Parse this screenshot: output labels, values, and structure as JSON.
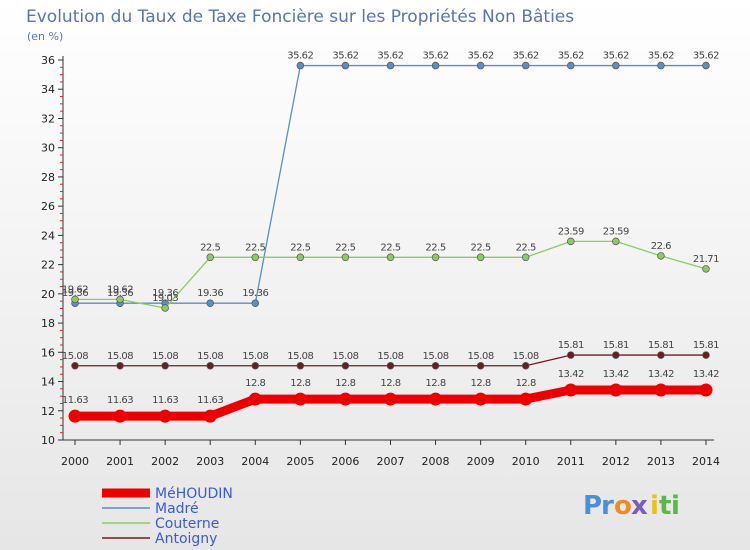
{
  "chart_data": {
    "type": "line",
    "title": "Evolution du Taux de Taxe Foncière sur les Propriétés Non Bâties",
    "ylabel": "(en %)",
    "xlabel": "",
    "x": [
      "2000",
      "2001",
      "2002",
      "2003",
      "2004",
      "2005",
      "2006",
      "2007",
      "2008",
      "2009",
      "2010",
      "2011",
      "2012",
      "2013",
      "2014"
    ],
    "yticks": [
      "10",
      "12",
      "14",
      "16",
      "18",
      "20",
      "22",
      "24",
      "26",
      "28",
      "30",
      "32",
      "34",
      "36"
    ],
    "ylim": [
      10,
      36
    ],
    "grid": false,
    "legend_position": "bottom-left",
    "series": [
      {
        "name": "Antoigny",
        "color": "#6b1e1e",
        "values": [
          15.08,
          15.08,
          15.08,
          15.08,
          15.08,
          15.08,
          15.08,
          15.08,
          15.08,
          15.08,
          15.08,
          15.81,
          15.81,
          15.81,
          15.81
        ],
        "labels": [
          "15.08",
          "15.08",
          "15.08",
          "15.08",
          "15.08",
          "15.08",
          "15.08",
          "15.08",
          "15.08",
          "15.08",
          "15.08",
          "15.81",
          "15.81",
          "15.81",
          "15.81"
        ]
      },
      {
        "name": "Madré",
        "color": "#5b8ec4",
        "values": [
          19.36,
          19.36,
          19.36,
          19.36,
          19.36,
          35.62,
          35.62,
          35.62,
          35.62,
          35.62,
          35.62,
          35.62,
          35.62,
          35.62,
          35.62
        ],
        "labels": [
          "19.36",
          "19.36",
          "19.36",
          "19.36",
          "19.36",
          "35.62",
          "35.62",
          "35.62",
          "35.62",
          "35.62",
          "35.62",
          "35.62",
          "35.62",
          "35.62",
          "35.62"
        ]
      },
      {
        "name": "Couterne",
        "color": "#8ccc5e",
        "values": [
          19.62,
          19.62,
          19.03,
          22.5,
          22.5,
          22.5,
          22.5,
          22.5,
          22.5,
          22.5,
          22.5,
          23.59,
          23.59,
          22.6,
          21.71
        ],
        "labels": [
          "19.62",
          "19.62",
          "19.03",
          "22.5",
          "22.5",
          "22.5",
          "22.5",
          "22.5",
          "22.5",
          "22.5",
          "22.5",
          "23.59",
          "23.59",
          "22.6",
          "21.71"
        ]
      },
      {
        "name": "MéHOUDIN",
        "color": "#ee0000",
        "values": [
          11.63,
          11.63,
          11.63,
          11.63,
          12.8,
          12.8,
          12.8,
          12.8,
          12.8,
          12.8,
          12.8,
          13.42,
          13.42,
          13.42,
          13.42
        ],
        "labels": [
          "11.63",
          "11.63",
          "11.63",
          "11.63",
          "12.8",
          "12.8",
          "12.8",
          "12.8",
          "12.8",
          "12.8",
          "12.8",
          "13.42",
          "13.42",
          "13.42",
          "13.42"
        ]
      }
    ],
    "legend": [
      "MéHOUDIN",
      "Madré",
      "Couterne",
      "Antoigny"
    ]
  },
  "brand": {
    "letters": [
      "P",
      "r",
      "o",
      "x",
      "i",
      "t",
      "i"
    ],
    "colors": [
      "#4c8fd6",
      "#4c8fd6",
      "#f08a24",
      "#7a5bbf",
      "#e8c21a",
      "#5ab848",
      "#5ab848"
    ]
  }
}
